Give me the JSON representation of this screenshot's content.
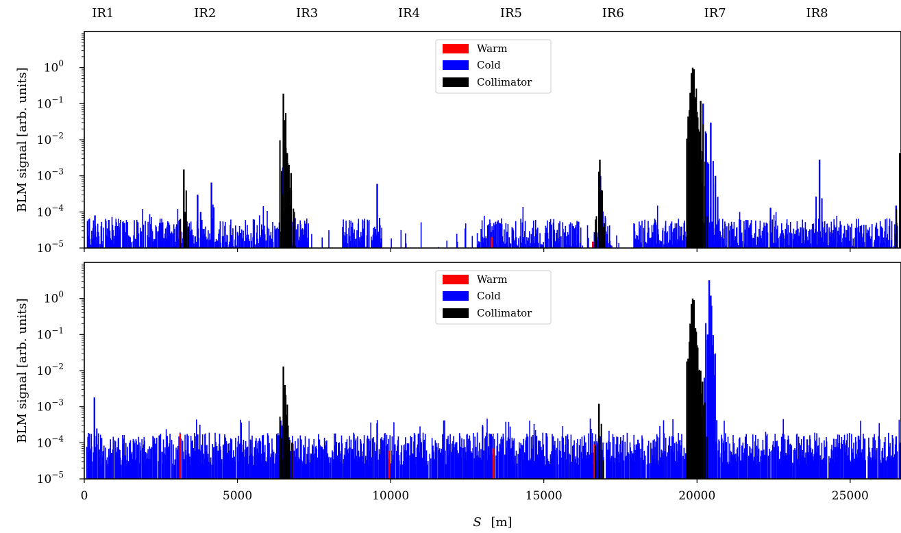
{
  "ir_labels": [
    "IR1",
    "IR2",
    "IR3",
    "IR4",
    "IR5",
    "IR6",
    "IR7",
    "IR8"
  ],
  "ir_positions": [
    600,
    3930,
    7260,
    10590,
    13920,
    17250,
    20580,
    23910
  ],
  "colors": {
    "warm": "#ff0000",
    "cold": "#0000ff",
    "collimator": "#000000"
  },
  "xaxis": {
    "label_main": "S",
    "label_unit": "[m]",
    "xlim": [
      0,
      26659
    ],
    "ticks": [
      0,
      5000,
      10000,
      15000,
      20000,
      25000
    ],
    "tick_labels": [
      "0",
      "5000",
      "10000",
      "15000",
      "20000",
      "25000"
    ]
  },
  "yaxis": {
    "label": "BLM signal  [arb. units]",
    "scale": "log",
    "ylim": [
      1e-05,
      10.0
    ],
    "ticks": [
      1e-05,
      0.0001,
      0.001,
      0.01,
      0.1,
      1.0
    ]
  },
  "chart_data": [
    {
      "type": "bar",
      "scale": "log",
      "ylim": [
        1e-05,
        10
      ],
      "xlim": [
        0,
        26659
      ],
      "xlabel": "",
      "ylabel": "BLM signal  [arb. units]",
      "legend": {
        "placement": "top-center",
        "entries": [
          "Warm",
          "Cold",
          "Collimator"
        ]
      },
      "background_level": {
        "cold": 2e-05,
        "noise_spread_decades": 0.4
      },
      "series": [
        {
          "name": "Warm",
          "color": "#ff0000",
          "x": [
            3130,
            6750,
            13300,
            16600,
            20080
          ],
          "values": [
            3e-05,
            3e-05,
            2e-05,
            1.5e-05,
            0.001
          ]
        },
        {
          "name": "Cold",
          "color": "#0000ff",
          "x": [
            350,
            800,
            1300,
            3700,
            3800,
            4150,
            6480,
            9560,
            16850,
            20200,
            20300,
            20450,
            20600,
            22400,
            24000,
            26500
          ],
          "values": [
            8e-05,
            6e-05,
            5e-05,
            0.0003,
            0.0001,
            0.00065,
            0.0017,
            0.0006,
            0.001,
            0.1,
            0.015,
            0.03,
            0.001,
            0.00013,
            0.0028,
            0.00015
          ]
        },
        {
          "name": "Collimator",
          "color": "#000000",
          "x": [
            3250,
            3300,
            6500,
            6550,
            6580,
            6620,
            6680,
            6750,
            6850,
            16800,
            16830,
            19780,
            19820,
            19860,
            19900,
            19950,
            20000,
            20050,
            20120,
            20180,
            26500,
            26620
          ],
          "values": [
            0.0015,
            0.0001,
            0.19,
            0.035,
            0.006,
            0.004,
            0.002,
            0.0012,
            0.0001,
            0.0013,
            0.0028,
            0.2,
            0.7,
            1.0,
            0.9,
            0.15,
            0.06,
            0.01,
            0.12,
            0.005,
            2.5e-05,
            0.0043
          ]
        }
      ]
    },
    {
      "type": "bar",
      "scale": "log",
      "ylim": [
        1e-05,
        10
      ],
      "xlim": [
        0,
        26659
      ],
      "xlabel": "S [m]",
      "ylabel": "BLM signal  [arb. units]",
      "legend": {
        "placement": "top-center",
        "entries": [
          "Warm",
          "Cold",
          "Collimator"
        ]
      },
      "background_level": {
        "cold": 5e-05,
        "noise_spread_decades": 0.45
      },
      "series": [
        {
          "name": "Warm",
          "color": "#ff0000",
          "x": [
            3130,
            6800,
            9950,
            13350,
            16650,
            20080
          ],
          "values": [
            0.00018,
            0.0001,
            6e-05,
            7e-05,
            9e-05,
            0.002
          ]
        },
        {
          "name": "Cold",
          "color": "#0000ff",
          "x": [
            330,
            3700,
            6450,
            9560,
            13000,
            16850,
            20350,
            20400,
            20450,
            20500,
            26500
          ],
          "values": [
            0.0018,
            0.00017,
            0.0003,
            0.00035,
            0.00028,
            0.00015,
            0.1,
            3.2,
            1.2,
            0.05,
            0.00015
          ]
        },
        {
          "name": "Collimator",
          "color": "#000000",
          "x": [
            6500,
            6550,
            6600,
            6650,
            6700,
            6780,
            16800,
            19780,
            19820,
            19860,
            19900,
            19950,
            20000,
            20050,
            20120,
            20180
          ],
          "values": [
            0.013,
            0.004,
            0.0006,
            0.0003,
            0.00012,
            0.0001,
            0.0012,
            0.2,
            0.7,
            1.0,
            0.9,
            0.15,
            0.05,
            0.01,
            0.01,
            0.005
          ]
        }
      ]
    }
  ]
}
